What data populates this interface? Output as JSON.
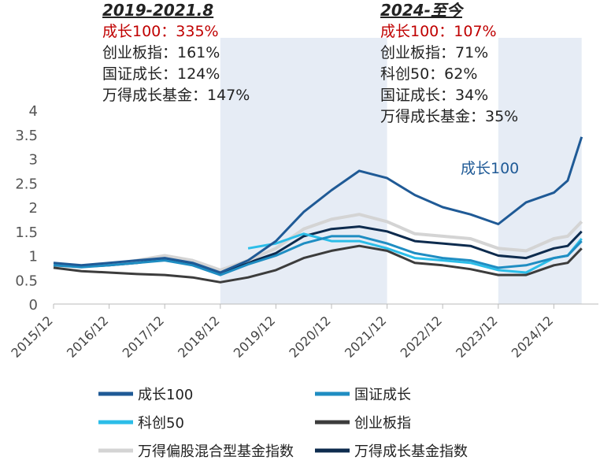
{
  "annotations": [
    {
      "title": "2019-2021.8",
      "lines": [
        "成长100：335%",
        "创业板指：161%",
        "国证成长：124%",
        "万得成长基金：147%"
      ],
      "highlight": "成长100：335%"
    },
    {
      "title": "2024-至今",
      "lines": [
        "成长100：107%",
        "创业板指：71%",
        "科创50：62%",
        "国证成长：34%",
        "万得成长基金：35%"
      ],
      "highlight": "成长100：107%"
    }
  ],
  "chart_data": {
    "type": "line",
    "x_ticks": [
      "2015/12",
      "2016/12",
      "2017/12",
      "2018/12",
      "2019/12",
      "2020/12",
      "2021/12",
      "2022/12",
      "2023/12",
      "2024/12"
    ],
    "y_ticks": [
      "0",
      "0.5",
      "1",
      "1.5",
      "2",
      "2.5",
      "3",
      "3.5",
      "4"
    ],
    "ylim": [
      0,
      4
    ],
    "shaded_periods": [
      [
        "2018/12",
        "2021/12"
      ],
      [
        "2023/12",
        "2025/06"
      ]
    ],
    "inline_label": "成长100",
    "x": [
      "2015/12",
      "2016/06",
      "2016/12",
      "2017/06",
      "2017/12",
      "2018/06",
      "2018/12",
      "2019/06",
      "2019/12",
      "2020/06",
      "2020/12",
      "2021/06",
      "2021/12",
      "2022/06",
      "2022/12",
      "2023/06",
      "2023/12",
      "2024/06",
      "2024/12",
      "2025/03",
      "2025/06"
    ],
    "series": [
      {
        "name": "成长100",
        "color": "#1f5a96",
        "width": 3,
        "values": [
          0.85,
          0.8,
          0.85,
          0.9,
          0.95,
          0.85,
          0.65,
          0.9,
          1.3,
          1.9,
          2.35,
          2.75,
          2.6,
          2.25,
          2.0,
          1.85,
          1.65,
          2.1,
          2.3,
          2.55,
          3.45
        ]
      },
      {
        "name": "国证成长",
        "color": "#1f8dc2",
        "width": 3,
        "values": [
          0.8,
          0.76,
          0.8,
          0.85,
          0.9,
          0.8,
          0.6,
          0.82,
          1.0,
          1.25,
          1.4,
          1.4,
          1.25,
          1.05,
          0.95,
          0.9,
          0.75,
          0.8,
          0.95,
          1.0,
          1.3
        ]
      },
      {
        "name": "科创50",
        "color": "#2bbde8",
        "width": 3,
        "values": [
          null,
          null,
          null,
          null,
          null,
          null,
          null,
          1.15,
          1.25,
          1.45,
          1.3,
          1.3,
          1.15,
          0.95,
          0.9,
          0.85,
          0.7,
          0.65,
          0.95,
          1.0,
          1.35
        ]
      },
      {
        "name": "创业板指",
        "color": "#3c3c3c",
        "width": 3,
        "values": [
          0.75,
          0.68,
          0.65,
          0.62,
          0.6,
          0.55,
          0.45,
          0.55,
          0.7,
          0.95,
          1.1,
          1.2,
          1.1,
          0.85,
          0.8,
          0.72,
          0.6,
          0.6,
          0.8,
          0.85,
          1.15
        ]
      },
      {
        "name": "万得偏股混合型基金指数",
        "color": "#d4d4d4",
        "width": 4,
        "values": [
          0.8,
          0.78,
          0.82,
          0.9,
          1.0,
          0.9,
          0.7,
          0.9,
          1.15,
          1.55,
          1.75,
          1.85,
          1.7,
          1.45,
          1.4,
          1.35,
          1.15,
          1.1,
          1.35,
          1.4,
          1.7
        ]
      },
      {
        "name": "万得成长基金指数",
        "color": "#0d2b4e",
        "width": 3,
        "values": [
          0.8,
          0.77,
          0.8,
          0.85,
          0.92,
          0.82,
          0.65,
          0.85,
          1.05,
          1.4,
          1.55,
          1.6,
          1.5,
          1.3,
          1.25,
          1.2,
          1.0,
          0.95,
          1.15,
          1.2,
          1.5
        ]
      }
    ],
    "legend_rows": [
      [
        "成长100",
        "国证成长"
      ],
      [
        "科创50",
        "创业板指"
      ],
      [
        "万得偏股混合型基金指数",
        "万得成长基金指数"
      ]
    ]
  }
}
